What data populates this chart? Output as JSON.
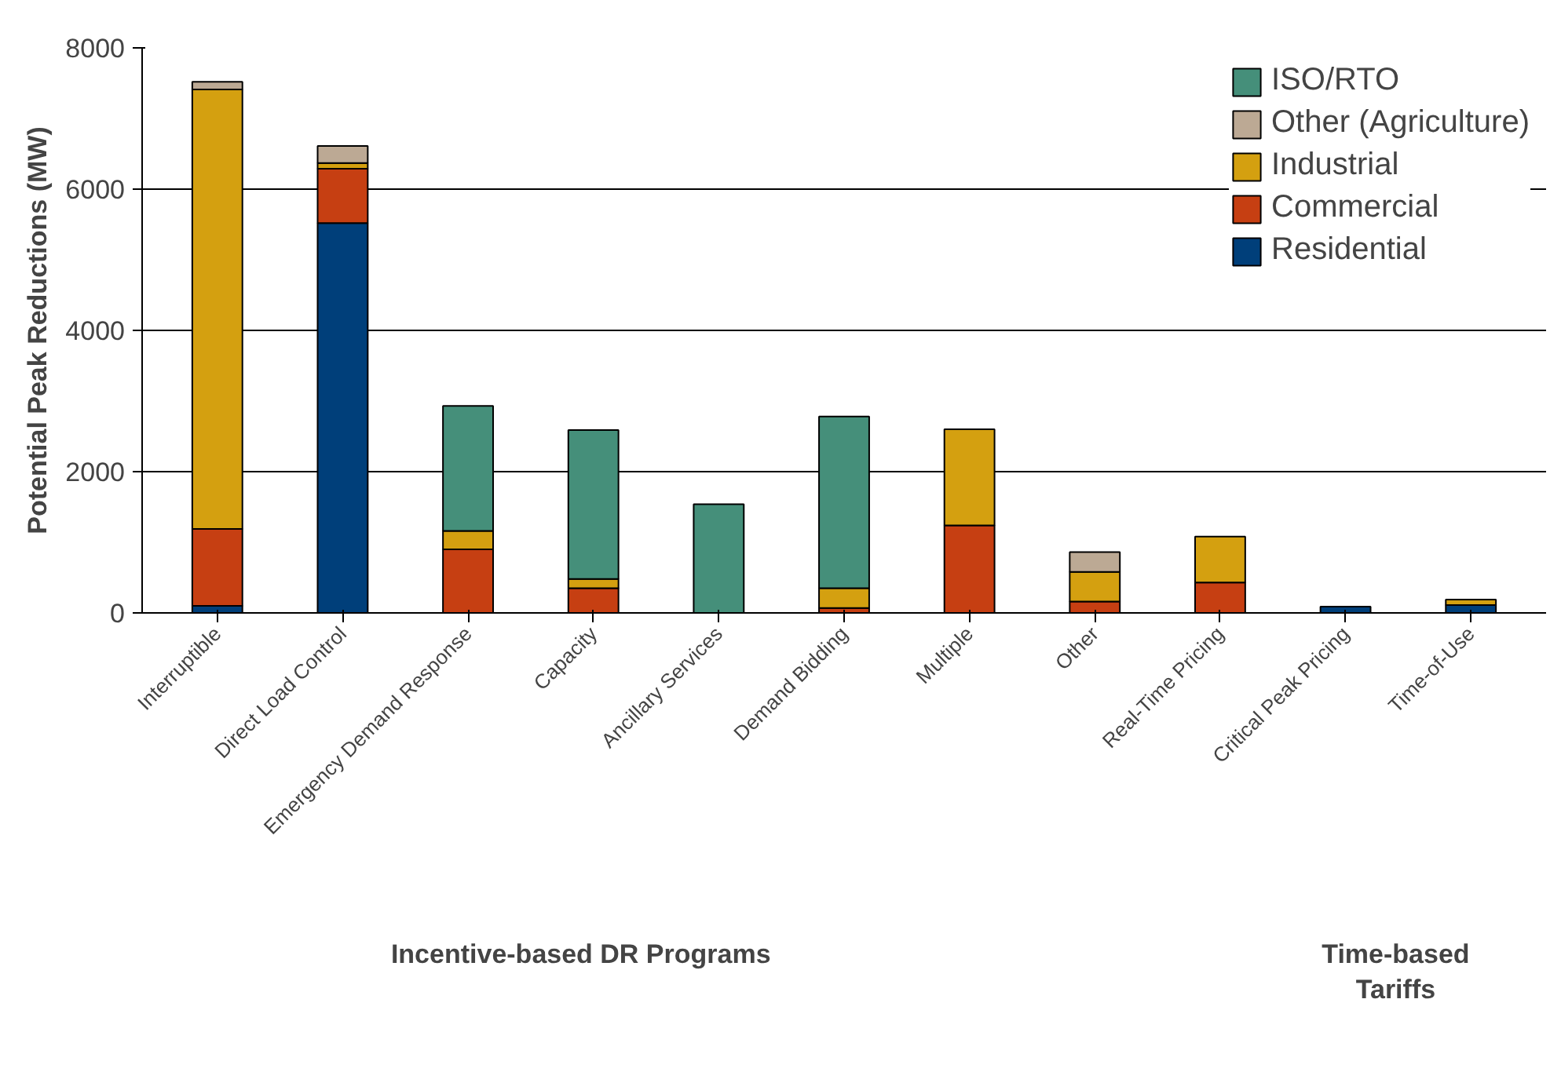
{
  "chart_data": {
    "type": "bar",
    "stacked": true,
    "ylabel": "Potential Peak Reductions (MW)",
    "categories": [
      "Interruptible",
      "Direct Load Control",
      "Emergency Demand Response",
      "Capacity",
      "Ancillary Services",
      "Demand Bidding",
      "Multiple",
      "Other",
      "Real-Time Pricing",
      "Critical Peak Pricing",
      "Time-of-Use"
    ],
    "series": [
      {
        "name": "Residential",
        "color": "#003f7a",
        "values": [
          100,
          5520,
          null,
          0,
          0,
          0,
          null,
          0,
          0,
          90,
          110
        ]
      },
      {
        "name": "Commercial",
        "color": "#c63f12",
        "values": [
          1090,
          770,
          900,
          350,
          0,
          70,
          1240,
          160,
          430,
          0,
          0
        ]
      },
      {
        "name": "Industrial",
        "color": "#d4a010",
        "values": [
          6220,
          80,
          260,
          130,
          0,
          280,
          1360,
          420,
          650,
          0,
          80
        ]
      },
      {
        "name": "Other (Agriculture)",
        "color": "#bca994",
        "values": [
          110,
          240,
          0,
          0,
          0,
          0,
          0,
          280,
          0,
          0,
          0
        ]
      },
      {
        "name": "ISO/RTO",
        "color": "#458f7a",
        "values": [
          0,
          0,
          1770,
          2110,
          1540,
          2430,
          0,
          0,
          0,
          0,
          0
        ]
      }
    ],
    "ylim": [
      0,
      8000
    ],
    "yticks": [
      0,
      2000,
      4000,
      6000,
      8000
    ],
    "grid": "y",
    "legend": "top right",
    "annotations": [
      "Incentive-based DR Programs",
      "Time-based\nTariffs"
    ]
  }
}
